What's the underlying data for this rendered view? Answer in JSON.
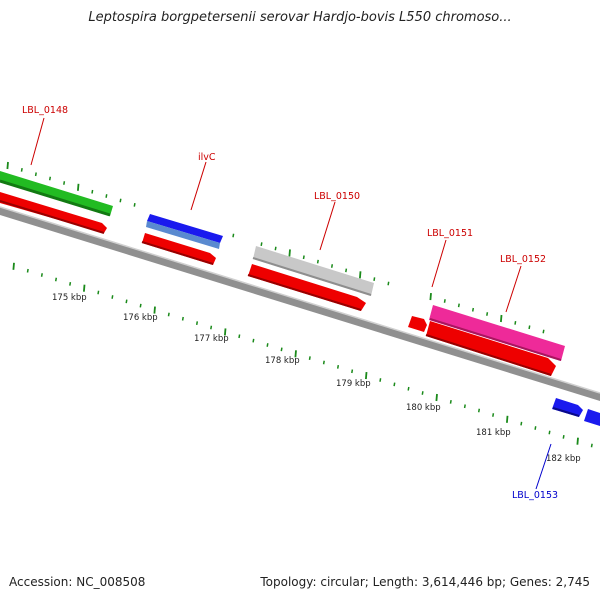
{
  "title": "Leptospira borgpetersenii serovar Hardjo-bovis L550 chromoso...",
  "footer": {
    "accession": "Accession: NC_008508",
    "summary": "Topology: circular; Length: 3,614,446 bp; Genes: 2,745"
  },
  "colors": {
    "backbone": "#888888",
    "tick": "#1a8a1a",
    "red_label": "#cc0000",
    "blue_label": "#0000cc"
  },
  "ruler": {
    "labels": [
      "175 kbp",
      "176 kbp",
      "177 kbp",
      "178 kbp",
      "179 kbp",
      "180 kbp",
      "181 kbp",
      "182 kbp"
    ]
  },
  "genes": [
    {
      "name": "LBL_0148",
      "label_color": "#cc0000"
    },
    {
      "name": "ilvC",
      "label_color": "#cc0000"
    },
    {
      "name": "LBL_0150",
      "label_color": "#cc0000"
    },
    {
      "name": "LBL_0151",
      "label_color": "#cc0000"
    },
    {
      "name": "LBL_0152",
      "label_color": "#cc0000"
    },
    {
      "name": "LBL_0153",
      "label_color": "#0000cc"
    }
  ]
}
